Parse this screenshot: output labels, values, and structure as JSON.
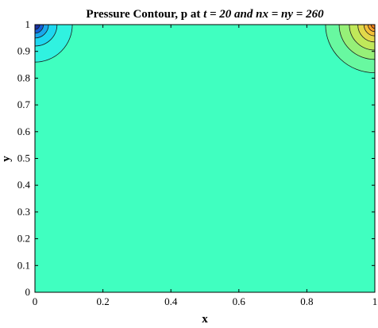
{
  "chart_data": {
    "type": "contour",
    "title_prefix": "Pressure Contour, p at ",
    "title_math": "t = 20 and nx = ny = 260",
    "xlabel": "x",
    "ylabel": "y",
    "xlim": [
      0,
      1
    ],
    "ylim": [
      0,
      1
    ],
    "x_ticks": [
      "0",
      "0.2",
      "0.4",
      "0.6",
      "0.8",
      "1"
    ],
    "y_ticks": [
      "0",
      "0.1",
      "0.2",
      "0.3",
      "0.4",
      "0.5",
      "0.6",
      "0.7",
      "0.8",
      "0.9",
      "1"
    ],
    "background_color": "#40ffc0",
    "regions": [
      {
        "name": "top-left-low-pressure",
        "center": [
          0,
          1
        ],
        "levels": [
          {
            "rx": 0.11,
            "ry": 0.14,
            "color": "#30f2e0"
          },
          {
            "rx": 0.065,
            "ry": 0.08,
            "color": "#1ed8f0"
          },
          {
            "rx": 0.04,
            "ry": 0.05,
            "color": "#18a8ec"
          },
          {
            "rx": 0.025,
            "ry": 0.032,
            "color": "#1560d8"
          },
          {
            "rx": 0.014,
            "ry": 0.018,
            "color": "#1a2fa0"
          }
        ]
      },
      {
        "name": "top-right-high-pressure",
        "center": [
          1,
          1
        ],
        "levels": [
          {
            "rx": 0.145,
            "ry": 0.18,
            "color": "#68f8a0"
          },
          {
            "rx": 0.105,
            "ry": 0.13,
            "color": "#96f078"
          },
          {
            "rx": 0.075,
            "ry": 0.095,
            "color": "#c0e85a"
          },
          {
            "rx": 0.05,
            "ry": 0.065,
            "color": "#e2d84a"
          },
          {
            "rx": 0.032,
            "ry": 0.042,
            "color": "#f4c038"
          },
          {
            "rx": 0.02,
            "ry": 0.026,
            "color": "#f8a028"
          },
          {
            "rx": 0.011,
            "ry": 0.014,
            "color": "#f87e1a"
          }
        ]
      }
    ]
  }
}
